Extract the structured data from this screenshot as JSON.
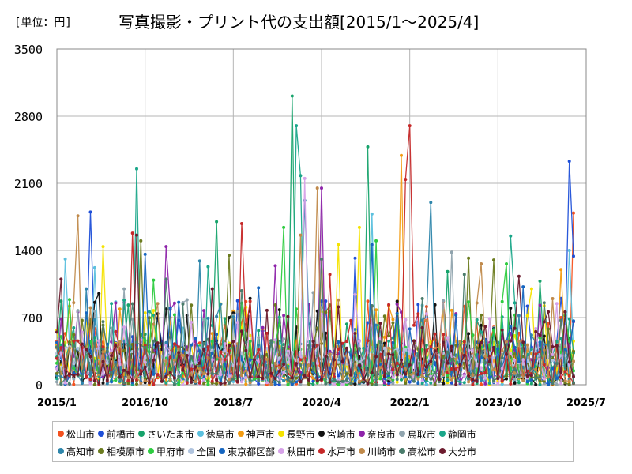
{
  "header": {
    "unit": "[単位：円]",
    "title": "写真撮影・プリント代の支出額[2015/1～2025/4]"
  },
  "chart_data": {
    "type": "line",
    "title": "写真撮影・プリント代の支出額[2015/1～2025/4]",
    "ylabel": "円",
    "xlabel": "",
    "ylim": [
      0,
      3500
    ],
    "yticks": [
      0,
      700,
      1400,
      2100,
      2800,
      3500
    ],
    "xticks": [
      "2015/1",
      "2016/10",
      "2018/7",
      "2020/4",
      "2022/1",
      "2023/10",
      "2025/7"
    ],
    "x_range_months": [
      0,
      126
    ],
    "grid": true,
    "legend_position": "bottom",
    "series": [
      {
        "name": "松山市",
        "color": "#f4511e",
        "peaks": [
          [
            123,
            1790
          ],
          [
            120,
            700
          ],
          [
            87,
            460
          ],
          [
            15,
            380
          ]
        ]
      },
      {
        "name": "前橋市",
        "color": "#1e4fd8",
        "peaks": [
          [
            8,
            1800
          ],
          [
            122,
            2330
          ],
          [
            123,
            1340
          ],
          [
            71,
            1320
          ],
          [
            18,
            500
          ]
        ]
      },
      {
        "name": "さいたま市",
        "color": "#16a36b",
        "peaks": [
          [
            74,
            2480
          ],
          [
            56,
            3010
          ],
          [
            38,
            1700
          ],
          [
            93,
            1180
          ],
          [
            115,
            1080
          ]
        ]
      },
      {
        "name": "徳島市",
        "color": "#5bc0de",
        "peaks": [
          [
            2,
            1310
          ],
          [
            75,
            1780
          ],
          [
            122,
            1400
          ],
          [
            9,
            1220
          ]
        ]
      },
      {
        "name": "神戸市",
        "color": "#f39c12",
        "peaks": [
          [
            82,
            2390
          ],
          [
            63,
            1310
          ],
          [
            120,
            1200
          ],
          [
            27,
            700
          ]
        ]
      },
      {
        "name": "長野市",
        "color": "#f5e300",
        "peaks": [
          [
            67,
            1460
          ],
          [
            72,
            1640
          ],
          [
            11,
            1440
          ],
          [
            113,
            1000
          ]
        ]
      },
      {
        "name": "宮崎市",
        "color": "#111111",
        "peaks": [
          [
            10,
            950
          ],
          [
            46,
            900
          ],
          [
            57,
            600
          ],
          [
            101,
            620
          ]
        ]
      },
      {
        "name": "奈良市",
        "color": "#8e24aa",
        "peaks": [
          [
            63,
            2050
          ],
          [
            26,
            1440
          ],
          [
            52,
            1240
          ],
          [
            95,
            740
          ]
        ]
      },
      {
        "name": "鳥取市",
        "color": "#90a4ae",
        "peaks": [
          [
            94,
            1380
          ],
          [
            16,
            1000
          ],
          [
            61,
            960
          ],
          [
            115,
            520
          ]
        ]
      },
      {
        "name": "静岡市",
        "color": "#1aa689",
        "peaks": [
          [
            19,
            2250
          ],
          [
            57,
            2700
          ],
          [
            58,
            2180
          ],
          [
            36,
            1230
          ],
          [
            108,
            1550
          ]
        ]
      },
      {
        "name": "高知市",
        "color": "#2e86ab",
        "peaks": [
          [
            89,
            1900
          ],
          [
            59,
            1920
          ],
          [
            7,
            1000
          ],
          [
            34,
            1290
          ]
        ]
      },
      {
        "name": "相模原市",
        "color": "#6b7b1e",
        "peaks": [
          [
            41,
            1350
          ],
          [
            98,
            1320
          ],
          [
            20,
            1500
          ],
          [
            104,
            1300
          ]
        ]
      },
      {
        "name": "甲府市",
        "color": "#2ecc40",
        "peaks": [
          [
            54,
            1640
          ],
          [
            76,
            1500
          ],
          [
            107,
            1260
          ],
          [
            23,
            1090
          ]
        ]
      },
      {
        "name": "全国",
        "color": "#b0c4de",
        "peaks": [
          [
            30,
            420
          ],
          [
            60,
            350
          ],
          [
            90,
            330
          ],
          [
            120,
            300
          ]
        ]
      },
      {
        "name": "東京都区部",
        "color": "#1565c0",
        "peaks": [
          [
            21,
            1360
          ],
          [
            75,
            1460
          ],
          [
            111,
            1020
          ],
          [
            48,
            1010
          ]
        ]
      },
      {
        "name": "秋田市",
        "color": "#d6a2e8",
        "peaks": [
          [
            59,
            2150
          ],
          [
            71,
            940
          ],
          [
            16,
            600
          ]
        ]
      },
      {
        "name": "水戸市",
        "color": "#c62828",
        "peaks": [
          [
            84,
            2700
          ],
          [
            83,
            2140
          ],
          [
            44,
            1680
          ],
          [
            18,
            1580
          ],
          [
            65,
            1150
          ]
        ]
      },
      {
        "name": "川崎市",
        "color": "#c08a4b",
        "peaks": [
          [
            62,
            2050
          ],
          [
            58,
            1560
          ],
          [
            5,
            1760
          ],
          [
            101,
            1260
          ]
        ]
      },
      {
        "name": "高松市",
        "color": "#4a7c6b",
        "peaks": [
          [
            63,
            1310
          ],
          [
            97,
            1150
          ],
          [
            44,
            980
          ],
          [
            26,
            1100
          ]
        ]
      },
      {
        "name": "大分市",
        "color": "#6d1b2e",
        "peaks": [
          [
            1,
            1100
          ],
          [
            19,
            1560
          ],
          [
            37,
            1000
          ],
          [
            110,
            1130
          ]
        ]
      }
    ]
  }
}
